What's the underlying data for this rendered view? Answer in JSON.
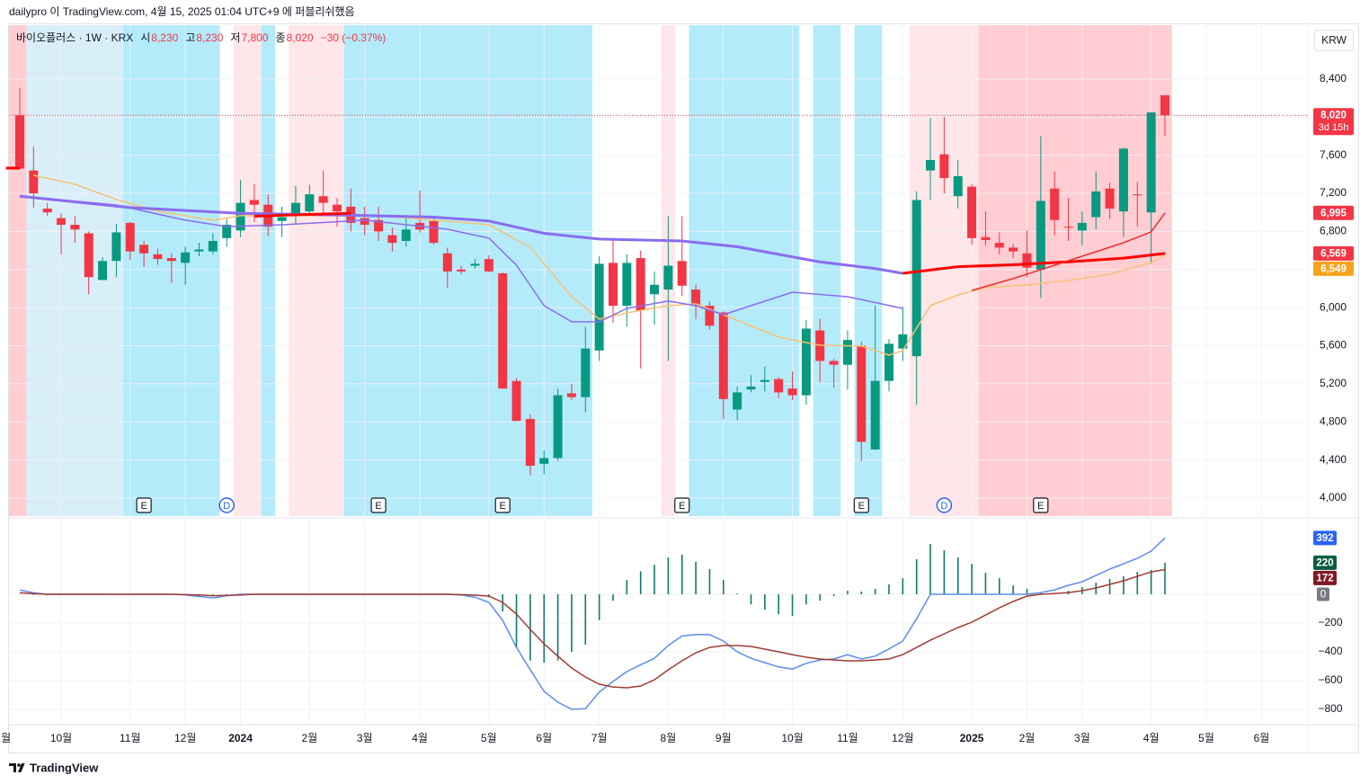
{
  "header": {
    "publisher": "dailypro 이 TradingView.com, 4월 15, 2025 01:04 UTC+9 에 퍼블리쉬했음"
  },
  "chart_data": {
    "type": "candlestick",
    "legend": {
      "symbol": "바이오플러스 · 1W · KRX",
      "fields": [
        {
          "label": "시",
          "value": "8,230"
        },
        {
          "label": "고",
          "value": "8,230"
        },
        {
          "label": "저",
          "value": "7,800"
        },
        {
          "label": "종",
          "value": "8,020"
        }
      ],
      "change": "−30 (−0.37%)"
    },
    "currency": "KRW",
    "grid": true,
    "up_color": "#089981",
    "down_color": "#f23645",
    "xlim": [
      -0.78,
      93.36
    ],
    "xticks": [
      {
        "value": -1,
        "label": "월"
      },
      {
        "value": 3,
        "label": "10월"
      },
      {
        "value": 8,
        "label": "11월"
      },
      {
        "value": 12,
        "label": "12월"
      },
      {
        "value": 16,
        "label": "2024",
        "bold": true
      },
      {
        "value": 21,
        "label": "2월"
      },
      {
        "value": 25,
        "label": "3월"
      },
      {
        "value": 29,
        "label": "4월"
      },
      {
        "value": 34,
        "label": "5월"
      },
      {
        "value": 38,
        "label": "6월"
      },
      {
        "value": 42,
        "label": "7월"
      },
      {
        "value": 47,
        "label": "8월"
      },
      {
        "value": 51,
        "label": "9월"
      },
      {
        "value": 56,
        "label": "10월"
      },
      {
        "value": 60,
        "label": "11월"
      },
      {
        "value": 64,
        "label": "12월"
      },
      {
        "value": 69,
        "label": "2025",
        "bold": true
      },
      {
        "value": 73,
        "label": "2월"
      },
      {
        "value": 77,
        "label": "3월"
      },
      {
        "value": 82,
        "label": "4월"
      },
      {
        "value": 86,
        "label": "5월"
      },
      {
        "value": 90,
        "label": "6월"
      }
    ],
    "ylim": [
      3811,
      8966
    ],
    "yticks": [
      {
        "value": 4000,
        "label": "4,000"
      },
      {
        "value": 4400,
        "label": "4,400"
      },
      {
        "value": 4800,
        "label": "4,800"
      },
      {
        "value": 5200,
        "label": "5,200"
      },
      {
        "value": 5600,
        "label": "5,600"
      },
      {
        "value": 6000,
        "label": "6,000"
      },
      {
        "value": 6400,
        "label": "6,400"
      },
      {
        "value": 6800,
        "label": "6,800"
      },
      {
        "value": 7200,
        "label": "7,200"
      },
      {
        "value": 7600,
        "label": "7,600"
      },
      {
        "value": 8000,
        "label": "8,000"
      },
      {
        "value": 8400,
        "label": "8,400"
      }
    ],
    "open": [
      8020,
      7440,
      7040,
      6940,
      6870,
      6780,
      6290,
      6490,
      6890,
      6660,
      6560,
      6520,
      6470,
      6590,
      6590,
      6730,
      6810,
      7130,
      7080,
      6910,
      6960,
      7010,
      7170,
      7080,
      7060,
      6940,
      6920,
      6760,
      6700,
      6890,
      6910,
      6570,
      6400,
      6440,
      6510,
      6360,
      5230,
      4830,
      4360,
      4420,
      5100,
      5060,
      5550,
      6470,
      6020,
      6520,
      6140,
      6190,
      6490,
      6190,
      6020,
      5950,
      4930,
      5140,
      5220,
      5250,
      5150,
      5080,
      5760,
      5440,
      5400,
      5600,
      4510,
      5230,
      5570,
      5490,
      7440,
      7610,
      7170,
      7270,
      6740,
      6680,
      6630,
      6570,
      6400,
      7250,
      6850,
      6810,
      6950,
      7250,
      7010,
      7190,
      7000,
      8230
    ],
    "high": [
      8310,
      7690,
      7100,
      6990,
      6960,
      6800,
      6530,
      6880,
      6900,
      6700,
      6620,
      6570,
      6640,
      6680,
      6780,
      6930,
      7340,
      7300,
      7190,
      7060,
      7280,
      7290,
      7440,
      7150,
      7250,
      7060,
      7060,
      6840,
      6970,
      7230,
      6960,
      6630,
      6440,
      6510,
      6550,
      6370,
      5260,
      4880,
      4500,
      5150,
      5200,
      5800,
      6540,
      6720,
      6560,
      6600,
      6380,
      6960,
      6960,
      6240,
      6060,
      5960,
      5170,
      5290,
      5380,
      5270,
      5330,
      5870,
      5880,
      5460,
      5760,
      5640,
      6020,
      5670,
      6010,
      7220,
      7990,
      8000,
      7550,
      7300,
      7010,
      6790,
      6670,
      6810,
      7800,
      7430,
      7150,
      7010,
      7430,
      7310,
      7680,
      7320,
      8050,
      8230
    ],
    "low": [
      7450,
      7050,
      6960,
      6560,
      6680,
      6140,
      6290,
      6320,
      6500,
      6430,
      6450,
      6260,
      6240,
      6540,
      6560,
      6640,
      6740,
      6900,
      6750,
      6740,
      6880,
      6970,
      6960,
      6850,
      6800,
      6760,
      6700,
      6590,
      6640,
      6790,
      6660,
      6210,
      6350,
      6410,
      6370,
      5150,
      4810,
      4240,
      4250,
      4390,
      5030,
      4900,
      5440,
      5840,
      5800,
      5360,
      5820,
      5440,
      6120,
      5880,
      5770,
      4830,
      4820,
      5110,
      5120,
      5050,
      5030,
      4980,
      5220,
      5160,
      5140,
      4390,
      4510,
      5120,
      5440,
      4980,
      7130,
      7200,
      7040,
      6660,
      6650,
      6560,
      6520,
      6320,
      6100,
      6760,
      6700,
      6650,
      6820,
      6930,
      6740,
      6850,
      6460,
      7800
    ],
    "close": [
      7460,
      7200,
      7000,
      6870,
      6820,
      6320,
      6490,
      6790,
      6590,
      6570,
      6510,
      6490,
      6580,
      6610,
      6700,
      6870,
      7100,
      7080,
      6850,
      6950,
      7100,
      7190,
      7100,
      7010,
      6890,
      6870,
      6800,
      6680,
      6820,
      6820,
      6680,
      6380,
      6380,
      6460,
      6380,
      5150,
      4810,
      4340,
      4420,
      5080,
      5060,
      5570,
      6460,
      6020,
      6470,
      5970,
      6240,
      6440,
      6230,
      6020,
      5810,
      5040,
      5110,
      5170,
      5240,
      5110,
      5080,
      5780,
      5440,
      5400,
      5660,
      4590,
      5230,
      5620,
      5720,
      7130,
      7550,
      7360,
      7380,
      6730,
      6710,
      6630,
      6590,
      6420,
      7120,
      6920,
      6840,
      6890,
      7220,
      7040,
      7670,
      7180,
      8050,
      8020
    ],
    "background_bands": [
      {
        "from": -1,
        "to": 0,
        "color": "#ffcdd2"
      },
      {
        "from": 1,
        "to": 7,
        "color": "#d8effa"
      },
      {
        "from": 8,
        "to": 14,
        "color": "#b3ebfb"
      },
      {
        "from": 16,
        "to": 17,
        "color": "#ffe6e8"
      },
      {
        "from": 18,
        "to": 18,
        "color": "#b3ebfb"
      },
      {
        "from": 20,
        "to": 23,
        "color": "#ffe6e8"
      },
      {
        "from": 24,
        "to": 41,
        "color": "#b3ebfb"
      },
      {
        "from": 47,
        "to": 47,
        "color": "#ffe6e8"
      },
      {
        "from": 49,
        "to": 56,
        "color": "#b3ebfb"
      },
      {
        "from": 58,
        "to": 59,
        "color": "#b3ebfb"
      },
      {
        "from": 61,
        "to": 62,
        "color": "#b3ebfb"
      },
      {
        "from": 65,
        "to": 69,
        "color": "#ffe6e8"
      },
      {
        "from": 70,
        "to": 83,
        "color": "#ffcdd2"
      }
    ],
    "events": [
      {
        "index": 9,
        "label": "E",
        "shape": "square",
        "color": "#131722"
      },
      {
        "index": 15,
        "label": "D",
        "shape": "circle",
        "color": "#2962ff"
      },
      {
        "index": 26,
        "label": "E",
        "shape": "square",
        "color": "#131722"
      },
      {
        "index": 35,
        "label": "E",
        "shape": "square",
        "color": "#131722"
      },
      {
        "index": 48,
        "label": "E",
        "shape": "square",
        "color": "#131722"
      },
      {
        "index": 61,
        "label": "E",
        "shape": "square",
        "color": "#131722"
      },
      {
        "index": 67,
        "label": "D",
        "shape": "circle",
        "color": "#2962ff"
      },
      {
        "index": 74,
        "label": "E",
        "shape": "square",
        "color": "#131722"
      }
    ],
    "lines": [
      {
        "color": "#f7c274",
        "width": 1.5,
        "x": [
          1,
          4,
          7,
          10,
          14,
          16,
          20,
          26,
          30,
          34,
          37,
          40,
          42,
          44,
          47,
          49,
          51,
          55,
          58,
          61,
          63,
          64,
          66,
          68,
          70,
          73,
          76,
          79,
          82,
          83
        ],
        "values": [
          7390,
          7295,
          7135,
          7012,
          6918,
          6965,
          6965,
          6965,
          6918,
          6870,
          6634,
          6115,
          5879,
          5945,
          6020,
          6040,
          5926,
          5690,
          5605,
          5596,
          5501,
          5549,
          6020,
          6134,
          6209,
          6238,
          6285,
          6351,
          6474,
          6549
        ]
      },
      {
        "color": "#8b6cef",
        "width": 1.5,
        "x": [
          0,
          7,
          12,
          15,
          19,
          25,
          31,
          34,
          36,
          38,
          40,
          42,
          44,
          47,
          49,
          51,
          56,
          60,
          64
        ],
        "values": [
          7172,
          7078,
          6918,
          6851,
          6870,
          6918,
          6823,
          6729,
          6445,
          6020,
          5851,
          5851,
          5992,
          6068,
          6020,
          5926,
          6162,
          6115,
          5992
        ]
      },
      {
        "color": "#8b6cef",
        "width": 3,
        "x": [
          0,
          8,
          16,
          24,
          30,
          34,
          38,
          42,
          48,
          52,
          58,
          62,
          64
        ],
        "values": [
          7170,
          7050,
          6990,
          6970,
          6950,
          6910,
          6780,
          6720,
          6700,
          6640,
          6480,
          6410,
          6360
        ]
      },
      {
        "color": "#ff0000",
        "width": 3,
        "x": [
          -1,
          0,
          1,
          17,
          20,
          24,
          25,
          64,
          68,
          72,
          76,
          80,
          83
        ],
        "values": [
          7465,
          7465,
          null,
          6960,
          6975,
          6990,
          null,
          6360,
          6430,
          6450,
          6480,
          6520,
          6569
        ]
      },
      {
        "color": "#e8312f",
        "width": 1.5,
        "x": [
          69,
          72,
          74,
          77,
          80,
          82,
          83
        ],
        "values": [
          6181,
          6304,
          6398,
          6540,
          6681,
          6795,
          6995
        ]
      }
    ],
    "price_badges": [
      {
        "value": 8020,
        "label": "8,020",
        "sub": "3d 15h",
        "color": "#f23645",
        "line": true
      },
      {
        "value": 6995,
        "label": "6,995",
        "color": "#f23645"
      },
      {
        "value": 6569,
        "label": "6,569",
        "color": "#f23645"
      },
      {
        "value": 6549,
        "label": "6,549",
        "color": "#f7a21b"
      }
    ],
    "macd": {
      "type": "macd",
      "ylim": [
        -906,
        519
      ],
      "yticks": [
        0,
        {
          "value": -200,
          "label": "−200"
        },
        {
          "value": -400,
          "label": "−400"
        },
        {
          "value": -600,
          "label": "−600"
        },
        {
          "value": -800,
          "label": "−800"
        }
      ],
      "zero_badge_color": "#787b86",
      "histogram": {
        "color": "#0e7c66",
        "badge_color": "#0b5c3f",
        "values": [
          0,
          -5,
          -5,
          -5,
          0,
          0,
          -5,
          -5,
          0,
          0,
          0,
          0,
          -5,
          -10,
          -10,
          -5,
          0,
          0,
          0,
          0,
          0,
          0,
          0,
          0,
          0,
          0,
          0,
          0,
          0,
          0,
          0,
          0,
          0,
          -5,
          -20,
          -119,
          -370,
          -460,
          -475,
          -460,
          -400,
          -350,
          -180,
          -45,
          100,
          160,
          206,
          256,
          275,
          225,
          175,
          100,
          6,
          -70,
          -106,
          -138,
          -150,
          -70,
          -44,
          -12,
          25,
          19,
          38,
          69,
          112,
          244,
          350,
          306,
          256,
          212,
          150,
          112,
          62,
          38,
          12,
          6,
          25,
          50,
          81,
          106,
          125,
          156,
          169,
          220
        ]
      },
      "series": [
        {
          "color": "#5b8def",
          "badge_color": "#2962ff",
          "values": [
            30,
            10,
            0,
            0,
            0,
            0,
            0,
            0,
            0,
            0,
            0,
            0,
            -5,
            -15,
            -25,
            -10,
            0,
            0,
            0,
            0,
            0,
            0,
            0,
            0,
            0,
            0,
            0,
            0,
            0,
            0,
            0,
            0,
            -5,
            -20,
            -56,
            -181,
            -370,
            -525,
            -675,
            -750,
            -800,
            -795,
            -680,
            -606,
            -537,
            -490,
            -445,
            -356,
            -290,
            -280,
            -280,
            -325,
            -400,
            -445,
            -475,
            -505,
            -520,
            -480,
            -456,
            -450,
            -420,
            -450,
            -430,
            -380,
            -325,
            -170,
            0,
            0,
            0,
            0,
            0,
            0,
            0,
            0,
            12,
            31,
            62,
            87,
            131,
            175,
            212,
            250,
            300,
            392
          ]
        },
        {
          "color": "#a33b34",
          "badge_color": "#801922",
          "values": [
            10,
            5,
            0,
            0,
            0,
            0,
            0,
            0,
            0,
            0,
            0,
            0,
            -2,
            -5,
            -10,
            -8,
            -4,
            0,
            0,
            0,
            0,
            0,
            0,
            0,
            0,
            0,
            0,
            0,
            0,
            0,
            0,
            0,
            -2,
            -6,
            -12,
            -56,
            -137,
            -244,
            -344,
            -430,
            -512,
            -575,
            -625,
            -644,
            -650,
            -637,
            -594,
            -525,
            -462,
            -406,
            -369,
            -356,
            -356,
            -362,
            -381,
            -400,
            -419,
            -437,
            -450,
            -456,
            -462,
            -462,
            -456,
            -450,
            -419,
            -369,
            -319,
            -275,
            -231,
            -194,
            -144,
            -94,
            -50,
            -12,
            0,
            6,
            12,
            25,
            44,
            69,
            94,
            125,
            156,
            172
          ]
        }
      ]
    }
  },
  "footer": {
    "brand": "TradingView"
  }
}
